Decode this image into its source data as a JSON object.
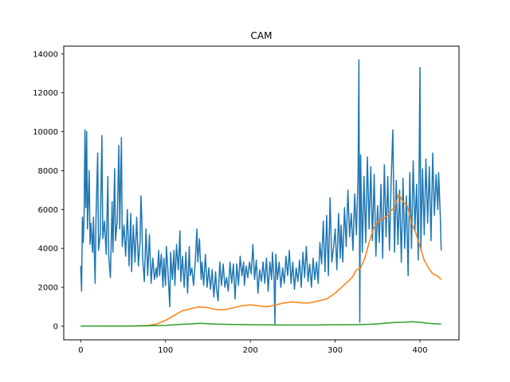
{
  "chart_data": {
    "type": "line",
    "title": "CAM",
    "xlabel": "",
    "ylabel": "",
    "xlim": [
      -20,
      446
    ],
    "ylim": [
      -700,
      14400
    ],
    "xticks": [
      0,
      100,
      200,
      300,
      400
    ],
    "yticks": [
      0,
      2000,
      4000,
      6000,
      8000,
      10000,
      12000,
      14000
    ],
    "grid": false,
    "x_start": 0,
    "x_end": 425,
    "series": [
      {
        "color": "#1f77b4",
        "anchors": [
          [
            0,
            3100
          ],
          [
            1,
            1800
          ],
          [
            2,
            5600
          ],
          [
            3,
            4300
          ],
          [
            4,
            5700
          ],
          [
            5,
            10100
          ],
          [
            6,
            6100
          ],
          [
            7,
            10000
          ],
          [
            8,
            5000
          ],
          [
            10,
            8000
          ],
          [
            11,
            4200
          ],
          [
            12,
            5300
          ],
          [
            14,
            3800
          ],
          [
            15,
            5600
          ],
          [
            17,
            2200
          ],
          [
            18,
            5500
          ],
          [
            20,
            8900
          ],
          [
            21,
            3900
          ],
          [
            23,
            4700
          ],
          [
            25,
            9800
          ],
          [
            26,
            4500
          ],
          [
            28,
            5400
          ],
          [
            30,
            3700
          ],
          [
            32,
            7700
          ],
          [
            33,
            3600
          ],
          [
            35,
            2500
          ],
          [
            37,
            6400
          ],
          [
            38,
            3800
          ],
          [
            40,
            8100
          ],
          [
            41,
            4400
          ],
          [
            43,
            5400
          ],
          [
            45,
            9300
          ],
          [
            46,
            5000
          ],
          [
            48,
            9700
          ],
          [
            49,
            4100
          ],
          [
            51,
            5200
          ],
          [
            53,
            3600
          ],
          [
            55,
            6000
          ],
          [
            57,
            3100
          ],
          [
            59,
            5800
          ],
          [
            60,
            2800
          ],
          [
            62,
            5200
          ],
          [
            64,
            3300
          ],
          [
            66,
            5600
          ],
          [
            68,
            3100
          ],
          [
            70,
            4400
          ],
          [
            71,
            6700
          ],
          [
            72,
            5600
          ],
          [
            73,
            3500
          ],
          [
            75,
            2300
          ],
          [
            77,
            5000
          ],
          [
            79,
            2600
          ],
          [
            81,
            4700
          ],
          [
            83,
            2200
          ],
          [
            85,
            3500
          ],
          [
            87,
            2400
          ],
          [
            89,
            3000
          ],
          [
            90,
            2500
          ],
          [
            92,
            3900
          ],
          [
            93,
            2600
          ],
          [
            95,
            3700
          ],
          [
            97,
            2000
          ],
          [
            98,
            3500
          ],
          [
            100,
            2100
          ],
          [
            101,
            4100
          ],
          [
            103,
            2700
          ],
          [
            105,
            1000
          ],
          [
            106,
            3800
          ],
          [
            108,
            2400
          ],
          [
            110,
            3900
          ],
          [
            111,
            2100
          ],
          [
            113,
            4200
          ],
          [
            115,
            2900
          ],
          [
            117,
            4900
          ],
          [
            118,
            2300
          ],
          [
            120,
            3600
          ],
          [
            122,
            2000
          ],
          [
            124,
            3800
          ],
          [
            126,
            1700
          ],
          [
            128,
            4100
          ],
          [
            129,
            2600
          ],
          [
            131,
            3000
          ],
          [
            133,
            2100
          ],
          [
            135,
            3300
          ],
          [
            137,
            5000
          ],
          [
            138,
            3300
          ],
          [
            140,
            4500
          ],
          [
            142,
            2400
          ],
          [
            143,
            3300
          ],
          [
            145,
            2100
          ],
          [
            147,
            3700
          ],
          [
            149,
            2000
          ],
          [
            151,
            3000
          ],
          [
            153,
            1900
          ],
          [
            155,
            2900
          ],
          [
            157,
            1500
          ],
          [
            159,
            2800
          ],
          [
            160,
            2000
          ],
          [
            162,
            1300
          ],
          [
            164,
            3300
          ],
          [
            166,
            2100
          ],
          [
            168,
            3200
          ],
          [
            170,
            2000
          ],
          [
            172,
            2500
          ],
          [
            174,
            1800
          ],
          [
            176,
            3300
          ],
          [
            178,
            2200
          ],
          [
            180,
            3200
          ],
          [
            182,
            1400
          ],
          [
            184,
            3200
          ],
          [
            186,
            2100
          ],
          [
            188,
            3600
          ],
          [
            190,
            2600
          ],
          [
            192,
            3300
          ],
          [
            193,
            2100
          ],
          [
            195,
            3100
          ],
          [
            197,
            2500
          ],
          [
            199,
            3300
          ],
          [
            201,
            2700
          ],
          [
            203,
            4200
          ],
          [
            205,
            2400
          ],
          [
            207,
            3400
          ],
          [
            209,
            1700
          ],
          [
            211,
            2900
          ],
          [
            213,
            2300
          ],
          [
            215,
            3300
          ],
          [
            217,
            2200
          ],
          [
            219,
            3500
          ],
          [
            221,
            1800
          ],
          [
            223,
            3300
          ],
          [
            225,
            2400
          ],
          [
            226,
            3800
          ],
          [
            228,
            2400
          ],
          [
            229,
            100
          ],
          [
            230,
            3700
          ],
          [
            232,
            2400
          ],
          [
            234,
            3300
          ],
          [
            236,
            2000
          ],
          [
            238,
            3000
          ],
          [
            240,
            2200
          ],
          [
            242,
            3600
          ],
          [
            244,
            2600
          ],
          [
            246,
            3900
          ],
          [
            248,
            2200
          ],
          [
            250,
            3300
          ],
          [
            252,
            1900
          ],
          [
            254,
            3000
          ],
          [
            256,
            2300
          ],
          [
            258,
            3400
          ],
          [
            260,
            2000
          ],
          [
            262,
            3800
          ],
          [
            264,
            2500
          ],
          [
            266,
            4100
          ],
          [
            268,
            2300
          ],
          [
            270,
            3200
          ],
          [
            272,
            2000
          ],
          [
            274,
            3500
          ],
          [
            276,
            2400
          ],
          [
            278,
            3300
          ],
          [
            280,
            2200
          ],
          [
            282,
            4300
          ],
          [
            284,
            3200
          ],
          [
            286,
            5400
          ],
          [
            288,
            2800
          ],
          [
            290,
            5700
          ],
          [
            292,
            2600
          ],
          [
            294,
            6600
          ],
          [
            296,
            3300
          ],
          [
            298,
            4000
          ],
          [
            300,
            5000
          ],
          [
            302,
            2900
          ],
          [
            304,
            5800
          ],
          [
            306,
            3500
          ],
          [
            307,
            5200
          ],
          [
            309,
            3300
          ],
          [
            311,
            6100
          ],
          [
            313,
            4100
          ],
          [
            315,
            7000
          ],
          [
            317,
            4600
          ],
          [
            319,
            5800
          ],
          [
            321,
            3900
          ],
          [
            323,
            6800
          ],
          [
            325,
            4700
          ],
          [
            327,
            7800
          ],
          [
            328,
            13700
          ],
          [
            329,
            200
          ],
          [
            330,
            8800
          ],
          [
            332,
            3800
          ],
          [
            334,
            7700
          ],
          [
            336,
            4300
          ],
          [
            338,
            8700
          ],
          [
            340,
            5000
          ],
          [
            342,
            8200
          ],
          [
            344,
            4400
          ],
          [
            346,
            7800
          ],
          [
            348,
            3600
          ],
          [
            350,
            6200
          ],
          [
            352,
            4300
          ],
          [
            354,
            7300
          ],
          [
            356,
            3500
          ],
          [
            358,
            8300
          ],
          [
            360,
            4600
          ],
          [
            362,
            7700
          ],
          [
            364,
            3900
          ],
          [
            366,
            7400
          ],
          [
            368,
            10100
          ],
          [
            370,
            3800
          ],
          [
            372,
            7500
          ],
          [
            374,
            4200
          ],
          [
            376,
            7000
          ],
          [
            378,
            3300
          ],
          [
            380,
            7600
          ],
          [
            382,
            4000
          ],
          [
            384,
            6700
          ],
          [
            386,
            2600
          ],
          [
            388,
            7900
          ],
          [
            390,
            4000
          ],
          [
            392,
            8500
          ],
          [
            394,
            4900
          ],
          [
            396,
            7300
          ],
          [
            398,
            3400
          ],
          [
            400,
            13300
          ],
          [
            401,
            3900
          ],
          [
            403,
            8100
          ],
          [
            405,
            4700
          ],
          [
            407,
            8600
          ],
          [
            409,
            5300
          ],
          [
            411,
            8200
          ],
          [
            413,
            4400
          ],
          [
            415,
            8900
          ],
          [
            417,
            5700
          ],
          [
            419,
            7800
          ],
          [
            421,
            6000
          ],
          [
            422,
            7900
          ],
          [
            424,
            5600
          ],
          [
            425,
            3900
          ]
        ]
      },
      {
        "color": "#ff7f0e",
        "anchors": [
          [
            0,
            5
          ],
          [
            60,
            5
          ],
          [
            80,
            40
          ],
          [
            90,
            120
          ],
          [
            100,
            300
          ],
          [
            110,
            550
          ],
          [
            120,
            800
          ],
          [
            130,
            900
          ],
          [
            140,
            1000
          ],
          [
            150,
            950
          ],
          [
            160,
            850
          ],
          [
            170,
            850
          ],
          [
            180,
            950
          ],
          [
            190,
            1050
          ],
          [
            200,
            1100
          ],
          [
            210,
            1050
          ],
          [
            220,
            1000
          ],
          [
            230,
            1100
          ],
          [
            240,
            1200
          ],
          [
            250,
            1250
          ],
          [
            260,
            1200
          ],
          [
            270,
            1200
          ],
          [
            280,
            1300
          ],
          [
            290,
            1400
          ],
          [
            300,
            1700
          ],
          [
            310,
            2100
          ],
          [
            320,
            2500
          ],
          [
            325,
            2900
          ],
          [
            330,
            3000
          ],
          [
            335,
            3500
          ],
          [
            340,
            4300
          ],
          [
            345,
            5000
          ],
          [
            350,
            5400
          ],
          [
            355,
            5500
          ],
          [
            360,
            5600
          ],
          [
            365,
            5900
          ],
          [
            370,
            6100
          ],
          [
            375,
            6800
          ],
          [
            380,
            6400
          ],
          [
            385,
            6200
          ],
          [
            390,
            5300
          ],
          [
            395,
            4800
          ],
          [
            400,
            4100
          ],
          [
            405,
            3400
          ],
          [
            410,
            3000
          ],
          [
            415,
            2700
          ],
          [
            420,
            2600
          ],
          [
            425,
            2400
          ]
        ]
      },
      {
        "color": "#2ca02c",
        "anchors": [
          [
            0,
            5
          ],
          [
            60,
            10
          ],
          [
            80,
            20
          ],
          [
            100,
            40
          ],
          [
            110,
            70
          ],
          [
            120,
            100
          ],
          [
            130,
            120
          ],
          [
            140,
            150
          ],
          [
            150,
            130
          ],
          [
            160,
            110
          ],
          [
            170,
            100
          ],
          [
            180,
            90
          ],
          [
            190,
            90
          ],
          [
            200,
            80
          ],
          [
            210,
            70
          ],
          [
            220,
            70
          ],
          [
            230,
            60
          ],
          [
            240,
            60
          ],
          [
            250,
            60
          ],
          [
            260,
            60
          ],
          [
            270,
            60
          ],
          [
            280,
            60
          ],
          [
            290,
            70
          ],
          [
            300,
            70
          ],
          [
            310,
            80
          ],
          [
            320,
            80
          ],
          [
            330,
            90
          ],
          [
            340,
            100
          ],
          [
            350,
            120
          ],
          [
            360,
            160
          ],
          [
            370,
            190
          ],
          [
            380,
            200
          ],
          [
            390,
            230
          ],
          [
            400,
            200
          ],
          [
            410,
            150
          ],
          [
            420,
            120
          ],
          [
            425,
            110
          ]
        ]
      }
    ]
  }
}
